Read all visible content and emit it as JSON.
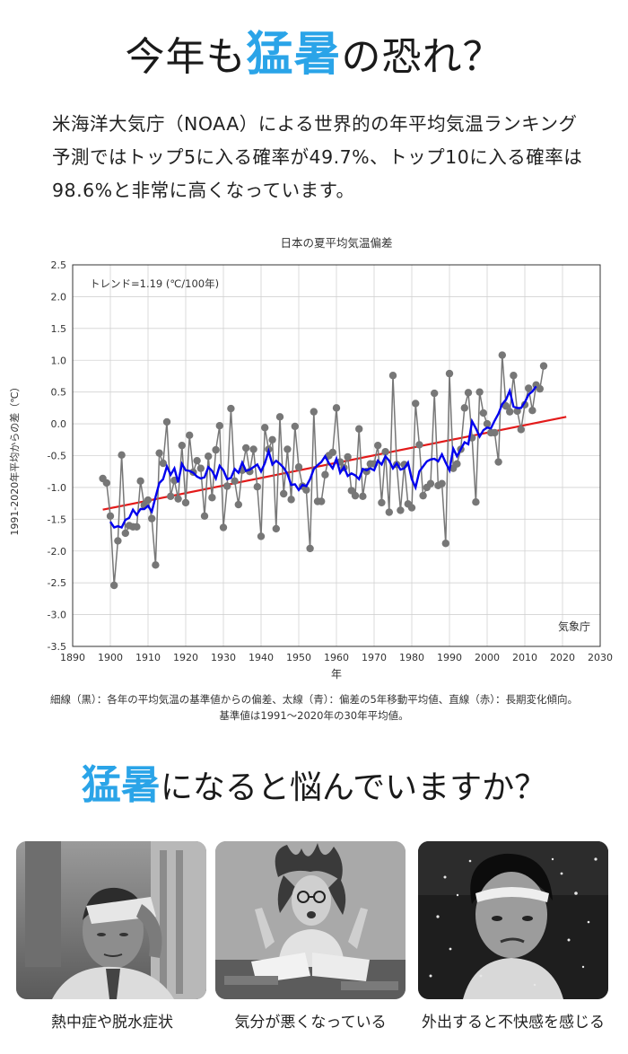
{
  "header": {
    "title_pre": "今年も",
    "title_highlight": "猛暑",
    "title_post": "の恐れ？"
  },
  "intro": {
    "line1": "米海洋大気庁（NOAA）による世界的の年平均気温ランキング",
    "line2": "予測ではトップ5に入る確率が49.7%、トップ10に入る確率は",
    "line3": "98.6%と非常に高くなっています。"
  },
  "colors": {
    "accent": "#2aa4e8",
    "annual": "#777777",
    "moving_avg": "#0000ee",
    "trend": "#e31a1a"
  },
  "chart_data": {
    "type": "line",
    "title": "日本の夏平均気温偏差",
    "xlabel": "年",
    "ylabel": "1991-2020年平均からの差（℃）",
    "xlim": [
      1890,
      2030
    ],
    "ylim": [
      -3.5,
      2.5
    ],
    "x_ticks": [
      1890,
      1900,
      1910,
      1920,
      1930,
      1940,
      1950,
      1960,
      1970,
      1980,
      1990,
      2000,
      2010,
      2020,
      2030
    ],
    "y_ticks": [
      -3.5,
      -3.0,
      -2.5,
      -2.0,
      -1.5,
      -1.0,
      -0.5,
      0.0,
      0.5,
      1.0,
      1.5,
      2.0,
      2.5
    ],
    "grid": true,
    "annotation": "トレンド=1.19 (℃/100年)",
    "source": "気象庁",
    "trend_line": {
      "x": [
        1898,
        2021
      ],
      "y": [
        -1.35,
        0.11
      ]
    },
    "series": [
      {
        "name": "各年の平均気温の基準値からの偏差",
        "start_year": 1898,
        "values": [
          -0.86,
          -0.93,
          -1.45,
          -2.54,
          -1.84,
          -0.49,
          -1.72,
          -1.6,
          -1.62,
          -1.62,
          -0.9,
          -1.28,
          -1.2,
          -1.49,
          -2.22,
          -0.46,
          -0.62,
          0.03,
          -1.14,
          -0.89,
          -1.18,
          -0.34,
          -1.24,
          -0.18,
          -0.76,
          -0.58,
          -0.7,
          -1.45,
          -0.51,
          -1.16,
          -0.41,
          -0.03,
          -1.63,
          -0.98,
          0.24,
          -0.9,
          -1.27,
          -0.73,
          -0.38,
          -0.75,
          -0.4,
          -0.99,
          -1.77,
          -0.06,
          -0.4,
          -0.25,
          -1.65,
          0.11,
          -1.1,
          -0.4,
          -1.19,
          -0.04,
          -0.68,
          -0.98,
          -1.04,
          -1.96,
          0.19,
          -1.22,
          -1.22,
          -0.8,
          -0.5,
          -0.45,
          0.25,
          -0.6,
          -0.69,
          -0.52,
          -1.05,
          -1.13,
          -0.08,
          -1.14,
          -0.75,
          -0.63,
          -0.63,
          -0.34,
          -1.24,
          -0.44,
          -1.39,
          0.76,
          -0.64,
          -1.36,
          -0.64,
          -1.26,
          -1.32,
          0.32,
          -0.33,
          -1.13,
          -1.0,
          -0.94,
          0.48,
          -0.97,
          -0.94,
          -1.88,
          0.79,
          -0.7,
          -0.63,
          -0.4,
          0.25,
          0.49,
          -0.22,
          -1.23,
          0.5,
          0.17,
          0.0,
          -0.14,
          -0.14,
          -0.6,
          1.08,
          0.28,
          0.19,
          0.76,
          0.2,
          -0.09,
          0.3,
          0.56,
          0.21,
          0.61,
          0.55,
          0.91
        ]
      },
      {
        "name": "偏差の5年移動平均値",
        "start_year": 1900,
        "values": [
          -1.54,
          -1.63,
          -1.61,
          -1.63,
          -1.51,
          -1.48,
          -1.35,
          -1.43,
          -1.34,
          -1.34,
          -1.29,
          -1.38,
          -1.15,
          -0.93,
          -0.87,
          -0.67,
          -0.8,
          -0.7,
          -0.92,
          -0.63,
          -0.73,
          -0.74,
          -0.77,
          -0.83,
          -0.86,
          -0.84,
          -0.68,
          -0.74,
          -0.86,
          -0.66,
          -0.73,
          -0.87,
          -0.85,
          -0.71,
          -0.77,
          -0.61,
          -0.74,
          -0.72,
          -0.68,
          -0.64,
          -0.75,
          -0.62,
          -0.43,
          -0.64,
          -0.58,
          -0.63,
          -0.69,
          -0.79,
          -0.96,
          -0.95,
          -1.04,
          -0.96,
          -0.98,
          -0.87,
          -0.71,
          -0.65,
          -0.6,
          -0.51,
          -0.62,
          -0.7,
          -0.55,
          -0.77,
          -0.68,
          -0.82,
          -0.78,
          -0.81,
          -0.87,
          -0.71,
          -0.73,
          -0.7,
          -0.73,
          -0.58,
          -0.64,
          -0.51,
          -0.58,
          -0.7,
          -0.62,
          -0.72,
          -0.7,
          -0.61,
          -0.87,
          -1.0,
          -0.75,
          -0.67,
          -0.59,
          -0.56,
          -0.55,
          -0.59,
          -0.48,
          -0.61,
          -0.73,
          -0.39,
          -0.51,
          -0.4,
          -0.29,
          -0.32,
          0.04,
          -0.07,
          -0.2,
          -0.1,
          -0.06,
          -0.07,
          0.05,
          0.16,
          0.31,
          0.38,
          0.52,
          0.27,
          0.25,
          0.25,
          0.34,
          0.46,
          0.51,
          0.59
        ]
      }
    ]
  },
  "caption": {
    "line1": "細線（黒）：各年の平均気温の基準値からの偏差、太線（青）：偏差の5年移動平均値、直線（赤）：長期変化傾向。",
    "line2": "基準値は1991～2020年の30年平均値。"
  },
  "section2": {
    "title_highlight": "猛暑",
    "title_post": "になると悩んでいますか？"
  },
  "photos": [
    {
      "label": "熱中症や脱水症状"
    },
    {
      "label": "気分が悪くなっている"
    },
    {
      "label": "外出すると不快感を感じる"
    }
  ]
}
